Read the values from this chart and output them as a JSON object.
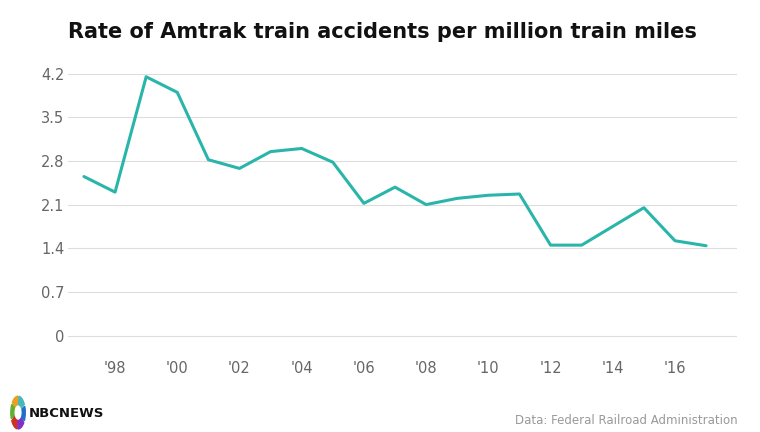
{
  "title": "Rate of Amtrak train accidents per million train miles",
  "years": [
    1997,
    1998,
    1999,
    2000,
    2001,
    2002,
    2003,
    2004,
    2005,
    2006,
    2007,
    2008,
    2009,
    2010,
    2011,
    2012,
    2013,
    2014,
    2015,
    2016,
    2017
  ],
  "values": [
    2.55,
    2.3,
    4.15,
    3.9,
    2.82,
    2.68,
    2.95,
    3.0,
    2.78,
    2.12,
    2.38,
    2.1,
    2.2,
    2.25,
    2.27,
    1.45,
    1.45,
    1.75,
    2.05,
    1.52,
    1.44
  ],
  "line_color": "#2ab5aa",
  "line_width": 2.2,
  "bg_color": "#ffffff",
  "yticks": [
    0,
    0.7,
    1.4,
    2.1,
    2.8,
    3.5,
    4.2
  ],
  "ylim": [
    -0.3,
    4.55
  ],
  "xtick_labels": [
    "'98",
    "'00",
    "'02",
    "'04",
    "'06",
    "'08",
    "'10",
    "'12",
    "'14",
    "'16"
  ],
  "xtick_positions": [
    1998,
    2000,
    2002,
    2004,
    2006,
    2008,
    2010,
    2012,
    2014,
    2016
  ],
  "xlim": [
    1996.5,
    2018.0
  ],
  "title_fontsize": 15,
  "tick_fontsize": 10.5,
  "grid_color": "#dddddd",
  "tick_color": "#666666",
  "source_text": "Data: Federal Railroad Administration",
  "source_fontsize": 8.5,
  "source_color": "#999999"
}
